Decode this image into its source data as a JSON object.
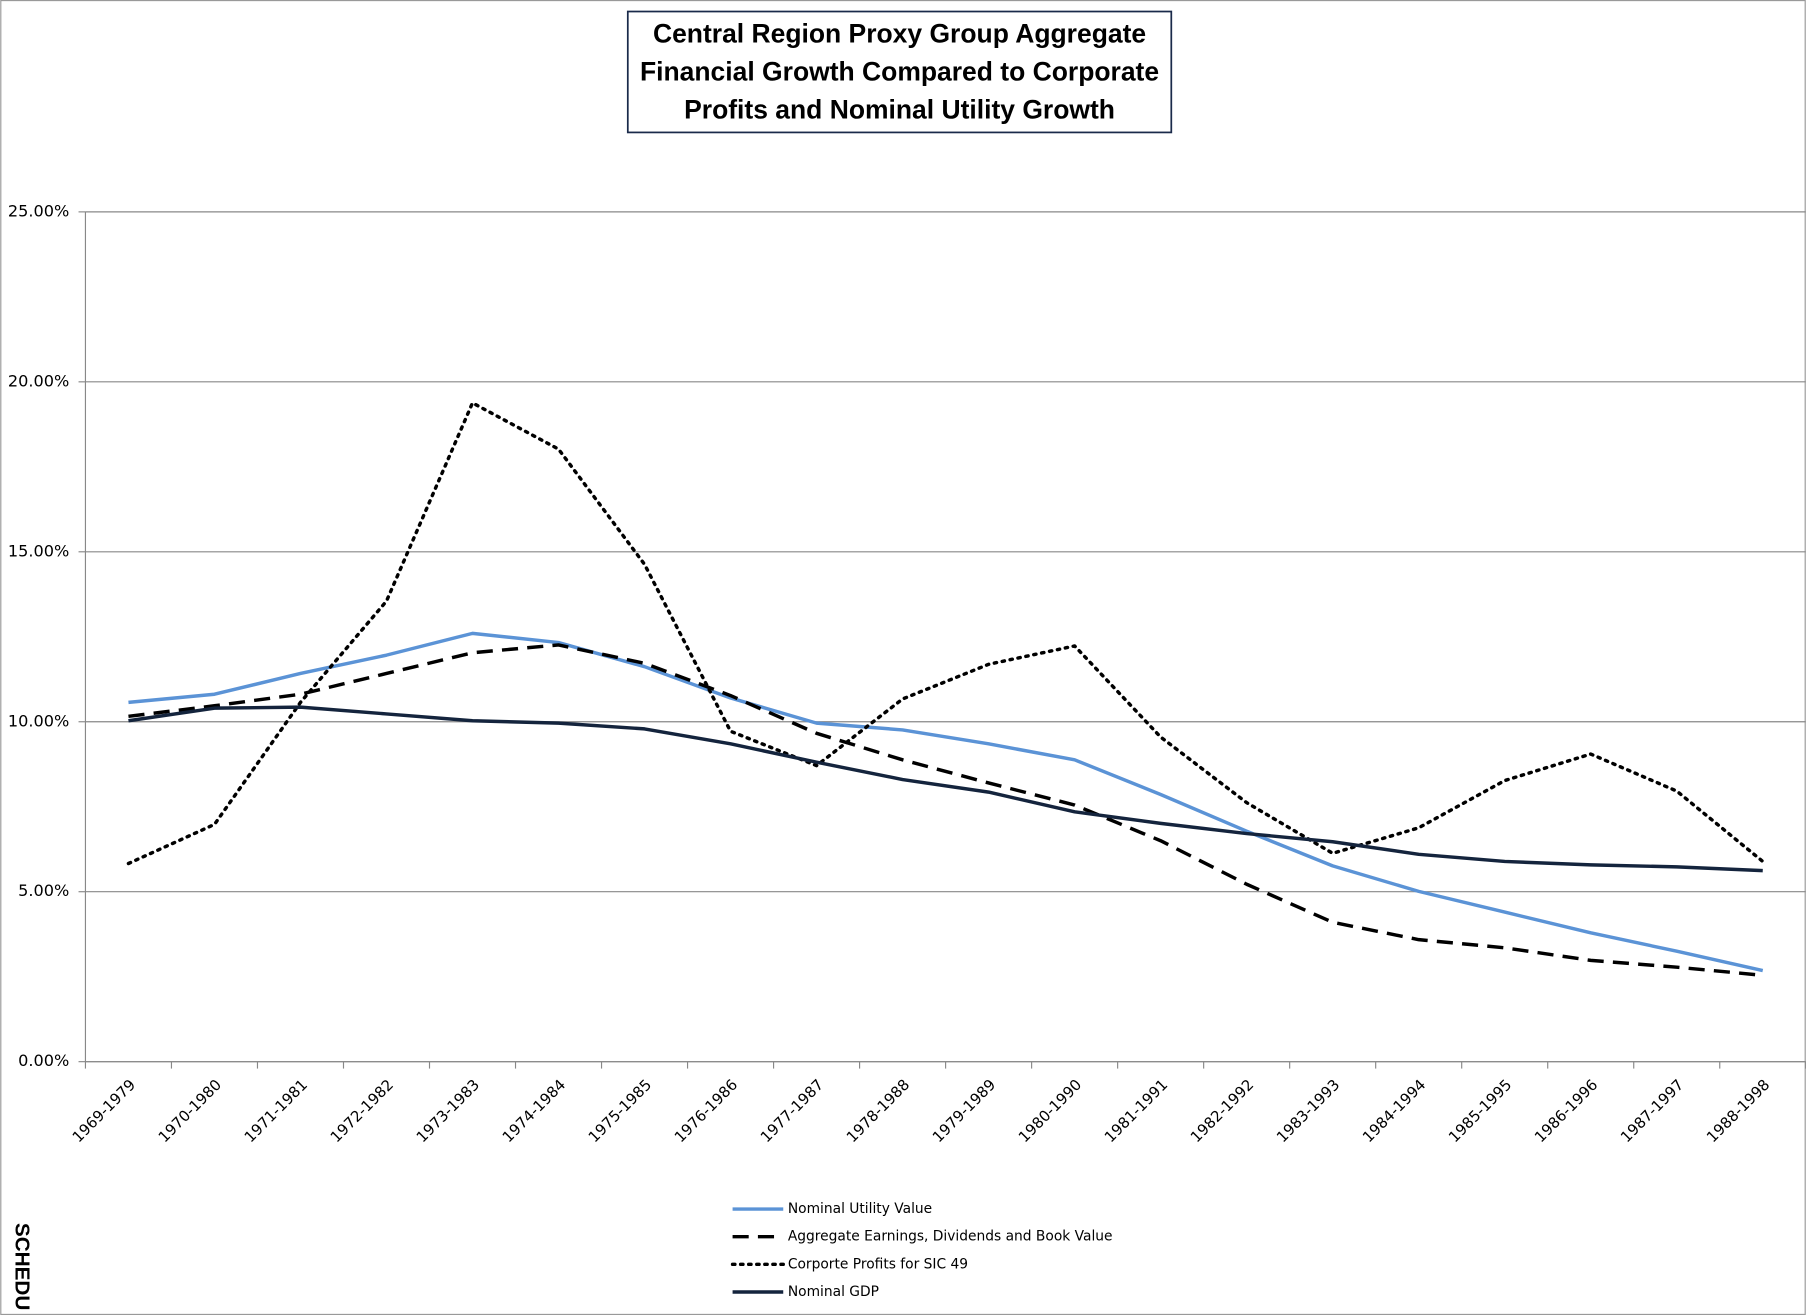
{
  "chart_data": {
    "type": "line",
    "title": [
      "Central Region Proxy Group Aggregate",
      "Financial Growth Compared to Corporate",
      "Profits and Nominal Utility Growth"
    ],
    "side_label": "SCHEDU",
    "categories": [
      "1969-1979",
      "1970-1980",
      "1971-1981",
      "1972-1982",
      "1973-1983",
      "1974-1984",
      "1975-1985",
      "1976-1986",
      "1977-1987",
      "1978-1988",
      "1979-1989",
      "1980-1990",
      "1981-1991",
      "1982-1992",
      "1983-1993",
      "1984-1994",
      "1985-1995",
      "1986-1996",
      "1987-1997",
      "1988-1998"
    ],
    "series": [
      {
        "name": "Nominal Utility Value",
        "color": "#5b93d6",
        "dash": "solid",
        "values": [
          10.57,
          10.81,
          11.42,
          11.96,
          12.6,
          12.33,
          11.62,
          10.7,
          9.96,
          9.76,
          9.35,
          8.88,
          7.86,
          6.78,
          5.76,
          5.01,
          4.4,
          3.79,
          3.25,
          2.68
        ]
      },
      {
        "name": "Aggregate Earnings, Dividends and Book Value",
        "color": "#000000",
        "dash": "dashed",
        "values": [
          10.16,
          10.47,
          10.81,
          11.42,
          12.03,
          12.26,
          11.72,
          10.77,
          9.66,
          8.88,
          8.2,
          7.55,
          6.5,
          5.22,
          4.1,
          3.59,
          3.35,
          2.98,
          2.78,
          2.54
        ]
      },
      {
        "name": "Corporte Profits for SIC 49",
        "color": "#000000",
        "dash": "dotted",
        "values": [
          5.83,
          6.98,
          10.57,
          13.55,
          19.38,
          18.02,
          14.63,
          9.72,
          8.71,
          10.67,
          11.69,
          12.23,
          9.55,
          7.62,
          6.13,
          6.88,
          8.27,
          9.05,
          7.96,
          5.89
        ]
      },
      {
        "name": "Nominal GDP",
        "color": "#14243d",
        "dash": "solid",
        "values": [
          10.03,
          10.4,
          10.43,
          10.23,
          10.03,
          9.96,
          9.79,
          9.35,
          8.81,
          8.3,
          7.93,
          7.35,
          7.01,
          6.71,
          6.47,
          6.1,
          5.89,
          5.79,
          5.73,
          5.62
        ]
      }
    ],
    "ylim": [
      0,
      25
    ],
    "yticks": [
      {
        "value": 0,
        "label": "0.00%"
      },
      {
        "value": 5,
        "label": "5.00%"
      },
      {
        "value": 10,
        "label": "10.00%"
      },
      {
        "value": 15,
        "label": "15.00%"
      },
      {
        "value": 20,
        "label": "20.00%"
      },
      {
        "value": 25,
        "label": "25.00%"
      }
    ],
    "grid": true
  }
}
